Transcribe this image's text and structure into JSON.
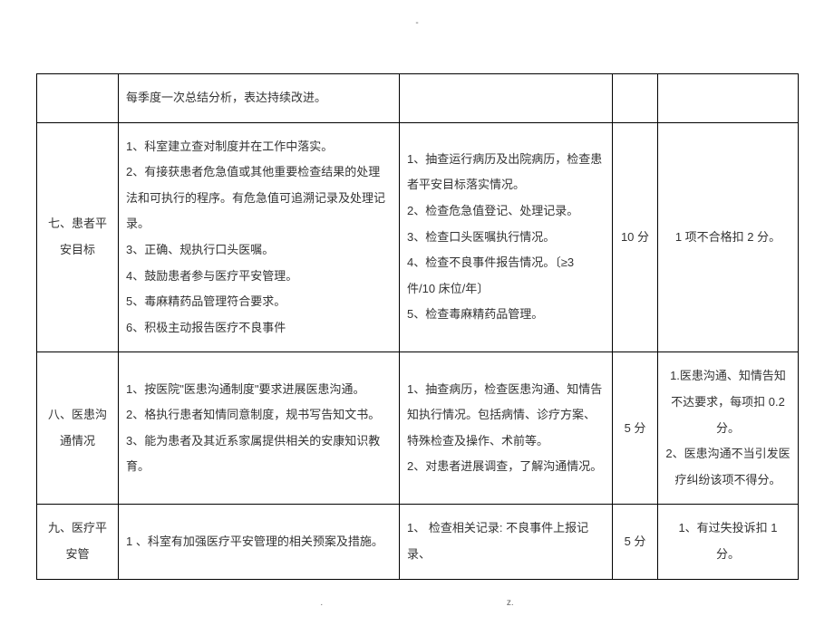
{
  "header_mark": "-",
  "footer_left": ".",
  "footer_right": "z.",
  "rows": [
    {
      "category": "",
      "requirements": "每季度一次总结分析，表达持续改进。",
      "check": "",
      "score": "",
      "deduction": ""
    },
    {
      "category": "七、患者平安目标",
      "requirements": "1、科室建立查对制度并在工作中落实。\n2、有接获患者危急值或其他重要检查结果的处理法和可执行的程序。有危急值可追溯记录及处理记录。\n3、正确、规执行口头医嘱。\n4、鼓励患者参与医疗平安管理。\n5、毒麻精药品管理符合要求。\n6、积极主动报告医疗不良事件",
      "check": "1、抽查运行病历及出院病历，检查患者平安目标落实情况。\n2、检查危急值登记、处理记录。\n3、检查口头医嘱执行情况。\n4、检查不良事件报告情况。〔≥3 件/10 床位/年〕\n5、检查毒麻精药品管理。",
      "score": "10 分",
      "deduction": "1 项不合格扣 2 分。"
    },
    {
      "category": "八、医患沟通情况",
      "requirements": "1、按医院\"医患沟通制度\"要求进展医患沟通。\n2、格执行患者知情同意制度，规书写告知文书。\n3、能为患者及其近系家属提供相关的安康知识教育。",
      "check": "1、抽查病历，检查医患沟通、知情告知执行情况。包括病情、诊疗方案、特殊检查及操作、术前等。\n2、对患者进展调查，了解沟通情况。",
      "score": "5 分",
      "deduction": "1.医患沟通、知情告知不达要求，每项扣 0.2 分。\n2、医患沟通不当引发医疗纠纷该项不得分。"
    },
    {
      "category": "九、医疗平安管",
      "requirements": "1 、科室有加强医疗平安管理的相关预案及措施。",
      "check": "1、 检查相关记录: 不良事件上报记录、",
      "score": "5 分",
      "deduction": "1、有过失投诉扣 1 分。"
    }
  ]
}
